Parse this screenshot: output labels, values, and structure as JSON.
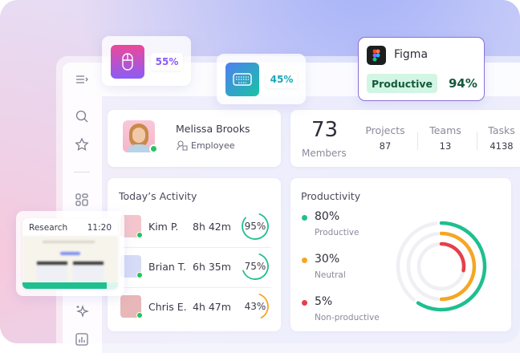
{
  "popups": {
    "mouse": {
      "icon": "mouse-icon",
      "percent": "55%",
      "color": "#8b5cf6"
    },
    "keyboard": {
      "icon": "keyboard-icon",
      "percent": "45%",
      "color": "#1aa7b8"
    },
    "app": {
      "icon": "figma-logo",
      "name": "Figma",
      "status": "Productive",
      "percent": "94%"
    },
    "screenshot": {
      "title": "Research",
      "time": "11:20"
    }
  },
  "sidebar": {
    "icons": [
      "menu-collapse-icon",
      "search-icon",
      "star-icon",
      "dashboard-icon",
      "sparkle-icon",
      "chart-icon"
    ]
  },
  "profile": {
    "name": "Melissa Brooks",
    "role": "Employee",
    "status": "online"
  },
  "stats": {
    "members_value": "73",
    "members_label": "Members",
    "items": [
      {
        "label": "Projects",
        "value": "87"
      },
      {
        "label": "Teams",
        "value": "13"
      },
      {
        "label": "Tasks",
        "value": "4138"
      }
    ]
  },
  "activity": {
    "title": "Today’s Activity",
    "rows": [
      {
        "name": "Kim P.",
        "time": "8h 42m",
        "percent": "95%",
        "value": 95,
        "color": "#1fbf8f"
      },
      {
        "name": "Brian T.",
        "time": "6h 35m",
        "percent": "75%",
        "value": 75,
        "color": "#1fbf8f"
      },
      {
        "name": "Chris E.",
        "time": "4h 47m",
        "percent": "43%",
        "value": 43,
        "color": "#f5a623"
      }
    ]
  },
  "productivity": {
    "title": "Productivity",
    "items": [
      {
        "value": "80%",
        "label": "Productive",
        "color": "#1fbf8f"
      },
      {
        "value": "30%",
        "label": "Neutral",
        "color": "#f5a623"
      },
      {
        "value": "5%",
        "label": "Non-productive",
        "color": "#e5404a"
      }
    ]
  }
}
